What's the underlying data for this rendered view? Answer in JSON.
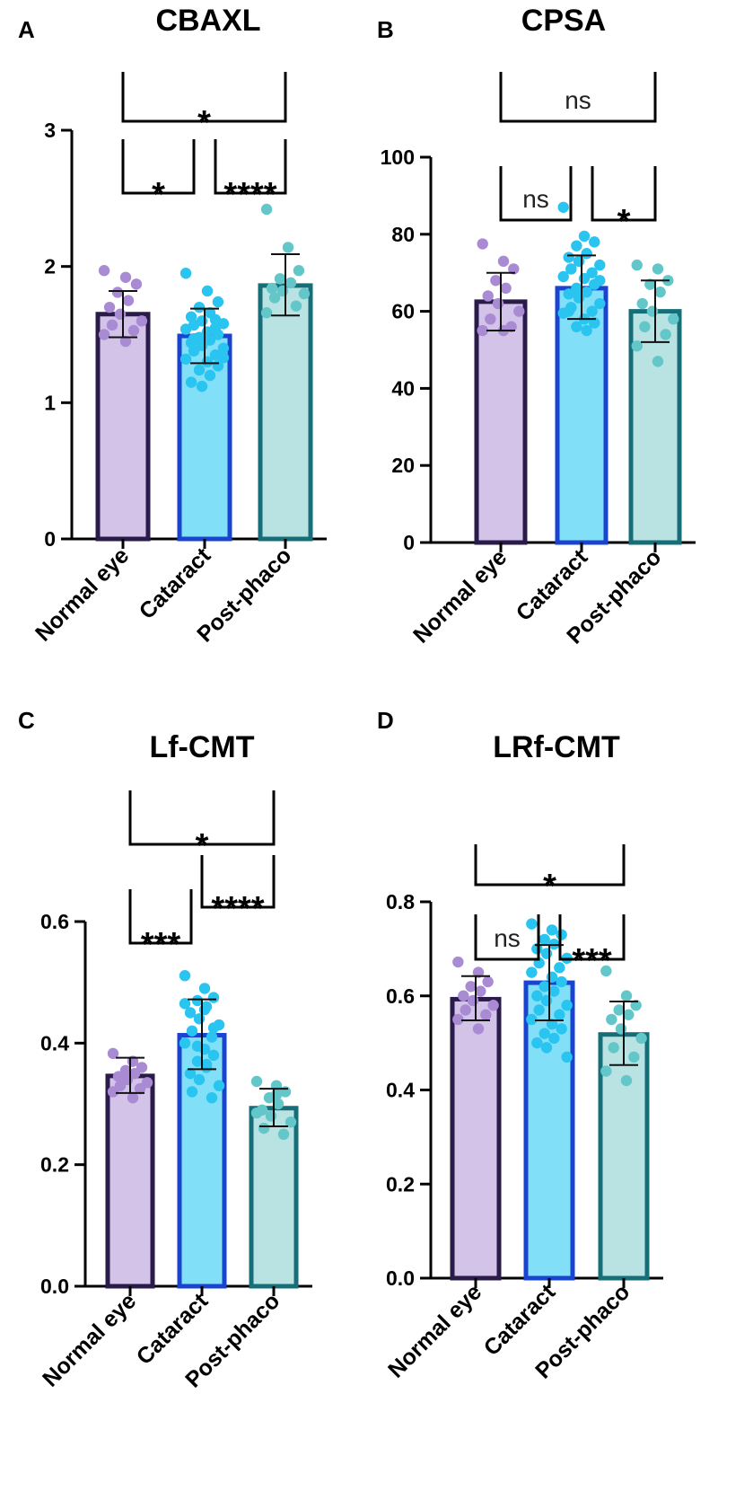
{
  "colors": {
    "fills": [
      "#d3c3e8",
      "#82dff8",
      "#b9e2e3"
    ],
    "edges": [
      "#2a1b4a",
      "#1a44cf",
      "#166f78"
    ],
    "dots": [
      "#a98bd3",
      "#29c4ef",
      "#63c6c9"
    ]
  },
  "chart_data": [
    {
      "panel": "A",
      "type": "bar",
      "title": "CBAXL",
      "categories": [
        "Normal eye",
        "Cataract",
        "Post-phaco"
      ],
      "values": [
        1.65,
        1.49,
        1.86
      ],
      "errors": [
        [
          1.48,
          1.82
        ],
        [
          1.29,
          1.69
        ],
        [
          1.64,
          2.09
        ]
      ],
      "points": [
        [
          1.97,
          1.92,
          1.87,
          1.81,
          1.75,
          1.7,
          1.65,
          1.6,
          1.57,
          1.53,
          1.5,
          1.45
        ],
        [
          1.95,
          1.82,
          1.74,
          1.7,
          1.66,
          1.63,
          1.6,
          1.58,
          1.57,
          1.55,
          1.54,
          1.52,
          1.5,
          1.48,
          1.46,
          1.44,
          1.42,
          1.4,
          1.38,
          1.35,
          1.32,
          1.3,
          1.27,
          1.24,
          1.2,
          1.15,
          1.12,
          1.33,
          1.47,
          1.61
        ],
        [
          2.42,
          2.14,
          1.97,
          1.91,
          1.88,
          1.84,
          1.82,
          1.8,
          1.77,
          1.71,
          1.66
        ]
      ],
      "ylim": [
        0,
        3
      ],
      "yticks": [
        0,
        1,
        2,
        3
      ],
      "tick_labels": [
        "0",
        "1",
        "2",
        "3"
      ],
      "legend": "none",
      "comparisons": [
        {
          "from": 0,
          "to": 1,
          "label": "*",
          "level": 0
        },
        {
          "from": 1,
          "to": 2,
          "label": "****",
          "level": 0
        },
        {
          "from": 0,
          "to": 2,
          "label": "*",
          "level": 1
        }
      ]
    },
    {
      "panel": "B",
      "type": "bar",
      "title": "CPSA",
      "categories": [
        "Normal eye",
        "Cataract",
        "Post-phaco"
      ],
      "values": [
        62.5,
        66,
        60
      ],
      "errors": [
        [
          55,
          70
        ],
        [
          58,
          74.5
        ],
        [
          52,
          68
        ]
      ],
      "points": [
        [
          77.5,
          73,
          71,
          68,
          66,
          64,
          62,
          60,
          58,
          56,
          55,
          55
        ],
        [
          87,
          79.5,
          78,
          77,
          75,
          74,
          73,
          72,
          71,
          70,
          69,
          68.5,
          67,
          66,
          65,
          64.5,
          63.5,
          62,
          61,
          60,
          59.5,
          58,
          57,
          56,
          55,
          60,
          64,
          68,
          71
        ],
        [
          72,
          71,
          68,
          67,
          65,
          62,
          60,
          58,
          56,
          54,
          51,
          47
        ]
      ],
      "ylim": [
        0,
        100
      ],
      "yticks": [
        0,
        20,
        40,
        60,
        80,
        100
      ],
      "tick_labels": [
        "0",
        "20",
        "40",
        "60",
        "80",
        "100"
      ],
      "legend": "none",
      "comparisons": [
        {
          "from": 0,
          "to": 1,
          "label": "ns",
          "level": 0
        },
        {
          "from": 1,
          "to": 2,
          "label": "*",
          "level": 0
        },
        {
          "from": 0,
          "to": 2,
          "label": "ns",
          "level": 1
        }
      ]
    },
    {
      "panel": "C",
      "type": "bar",
      "title": "Lf-CMT",
      "categories": [
        "Normal eye",
        "Cataract",
        "Post-phaco"
      ],
      "values": [
        0.346,
        0.413,
        0.293
      ],
      "errors": [
        [
          0.318,
          0.376
        ],
        [
          0.357,
          0.472
        ],
        [
          0.263,
          0.325
        ]
      ],
      "points": [
        [
          0.383,
          0.37,
          0.36,
          0.355,
          0.35,
          0.345,
          0.34,
          0.335,
          0.33,
          0.325,
          0.32,
          0.31
        ],
        [
          0.511,
          0.49,
          0.475,
          0.47,
          0.46,
          0.45,
          0.44,
          0.43,
          0.42,
          0.41,
          0.4,
          0.39,
          0.38,
          0.37,
          0.36,
          0.35,
          0.34,
          0.33,
          0.32,
          0.31,
          0.465,
          0.455,
          0.425,
          0.395,
          0.365
        ],
        [
          0.337,
          0.33,
          0.32,
          0.31,
          0.3,
          0.29,
          0.28,
          0.27,
          0.26,
          0.25,
          0.285,
          0.315
        ]
      ],
      "ylim": [
        0,
        0.6
      ],
      "yticks": [
        0,
        0.2,
        0.4,
        0.6
      ],
      "tick_labels": [
        "0.0",
        "0.2",
        "0.4",
        "0.6"
      ],
      "legend": "none",
      "comparisons": [
        {
          "from": 0,
          "to": 1,
          "label": "***",
          "level": 0
        },
        {
          "from": 1,
          "to": 2,
          "label": "****",
          "level": 1
        },
        {
          "from": 0,
          "to": 2,
          "label": "*",
          "level": 2
        }
      ]
    },
    {
      "panel": "D",
      "type": "bar",
      "title": "LRf-CMT",
      "categories": [
        "Normal eye",
        "Cataract",
        "Post-phaco"
      ],
      "values": [
        0.593,
        0.628,
        0.518
      ],
      "errors": [
        [
          0.548,
          0.642
        ],
        [
          0.548,
          0.708
        ],
        [
          0.453,
          0.588
        ]
      ],
      "points": [
        [
          0.672,
          0.65,
          0.63,
          0.62,
          0.61,
          0.6,
          0.59,
          0.58,
          0.57,
          0.56,
          0.55,
          0.53
        ],
        [
          0.753,
          0.74,
          0.73,
          0.72,
          0.71,
          0.7,
          0.69,
          0.68,
          0.67,
          0.66,
          0.65,
          0.64,
          0.63,
          0.62,
          0.61,
          0.6,
          0.59,
          0.58,
          0.57,
          0.56,
          0.55,
          0.54,
          0.53,
          0.52,
          0.51,
          0.5,
          0.49,
          0.47
        ],
        [
          0.653,
          0.6,
          0.58,
          0.57,
          0.56,
          0.55,
          0.53,
          0.51,
          0.49,
          0.47,
          0.44,
          0.42
        ]
      ],
      "ylim": [
        0,
        0.8
      ],
      "yticks": [
        0,
        0.2,
        0.4,
        0.6,
        0.8
      ],
      "tick_labels": [
        "0.0",
        "0.2",
        "0.4",
        "0.6",
        "0.8"
      ],
      "legend": "none",
      "comparisons": [
        {
          "from": 0,
          "to": 1,
          "label": "ns",
          "level": 0
        },
        {
          "from": 1,
          "to": 2,
          "label": "***",
          "level": 0
        },
        {
          "from": 0,
          "to": 2,
          "label": "*",
          "level": 1
        }
      ]
    }
  ]
}
